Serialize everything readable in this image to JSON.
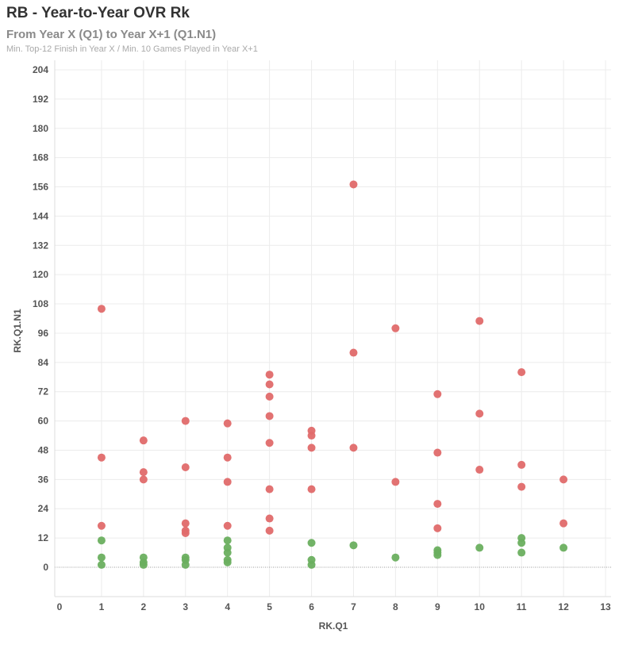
{
  "chart_data": {
    "type": "scatter",
    "title": "RB - Year-to-Year OVR Rk",
    "subtitle": "From Year X (Q1) to Year X+1 (Q1.N1)",
    "note": "Min. Top-12 Finish in Year X / Min. 10 Games Played in Year X+1",
    "xlabel": "RK.Q1",
    "ylabel": "RK.Q1.N1",
    "xlim": [
      0,
      13
    ],
    "ylim": [
      -12,
      210
    ],
    "x_ticks": [
      0,
      1,
      2,
      3,
      4,
      5,
      6,
      7,
      8,
      9,
      10,
      11,
      12,
      13
    ],
    "y_ticks": [
      0,
      12,
      24,
      36,
      48,
      60,
      72,
      84,
      96,
      108,
      120,
      132,
      144,
      156,
      168,
      180,
      192,
      204
    ],
    "grid": true,
    "colors": {
      "green": "#6aaf5f",
      "red": "#e06a6a",
      "grid": "#ececec",
      "zero_line": "#999999"
    },
    "series": [
      {
        "color": "green",
        "points": [
          [
            1,
            11
          ],
          [
            1,
            4
          ],
          [
            1,
            1
          ],
          [
            2,
            4
          ],
          [
            2,
            2
          ],
          [
            2,
            1
          ],
          [
            3,
            4
          ],
          [
            3,
            3
          ],
          [
            3,
            1
          ],
          [
            4,
            11
          ],
          [
            4,
            8
          ],
          [
            4,
            6
          ],
          [
            4,
            3
          ],
          [
            4,
            2
          ],
          [
            6,
            10
          ],
          [
            6,
            3
          ],
          [
            6,
            1
          ],
          [
            7,
            9
          ],
          [
            8,
            4
          ],
          [
            9,
            7
          ],
          [
            9,
            6
          ],
          [
            9,
            5
          ],
          [
            10,
            8
          ],
          [
            11,
            12
          ],
          [
            11,
            10
          ],
          [
            11,
            6
          ],
          [
            12,
            8
          ]
        ]
      },
      {
        "color": "red",
        "points": [
          [
            1,
            106
          ],
          [
            1,
            45
          ],
          [
            1,
            17
          ],
          [
            2,
            52
          ],
          [
            2,
            39
          ],
          [
            2,
            36
          ],
          [
            3,
            60
          ],
          [
            3,
            41
          ],
          [
            3,
            18
          ],
          [
            3,
            15
          ],
          [
            3,
            14
          ],
          [
            4,
            59
          ],
          [
            4,
            45
          ],
          [
            4,
            35
          ],
          [
            4,
            17
          ],
          [
            5,
            79
          ],
          [
            5,
            75
          ],
          [
            5,
            70
          ],
          [
            5,
            62
          ],
          [
            5,
            51
          ],
          [
            5,
            32
          ],
          [
            5,
            20
          ],
          [
            5,
            15
          ],
          [
            6,
            56
          ],
          [
            6,
            54
          ],
          [
            6,
            49
          ],
          [
            6,
            32
          ],
          [
            7,
            157
          ],
          [
            7,
            88
          ],
          [
            7,
            49
          ],
          [
            8,
            98
          ],
          [
            8,
            35
          ],
          [
            9,
            71
          ],
          [
            9,
            47
          ],
          [
            9,
            26
          ],
          [
            9,
            16
          ],
          [
            10,
            101
          ],
          [
            10,
            63
          ],
          [
            10,
            40
          ],
          [
            11,
            80
          ],
          [
            11,
            42
          ],
          [
            11,
            33
          ],
          [
            12,
            36
          ],
          [
            12,
            18
          ]
        ]
      }
    ]
  }
}
